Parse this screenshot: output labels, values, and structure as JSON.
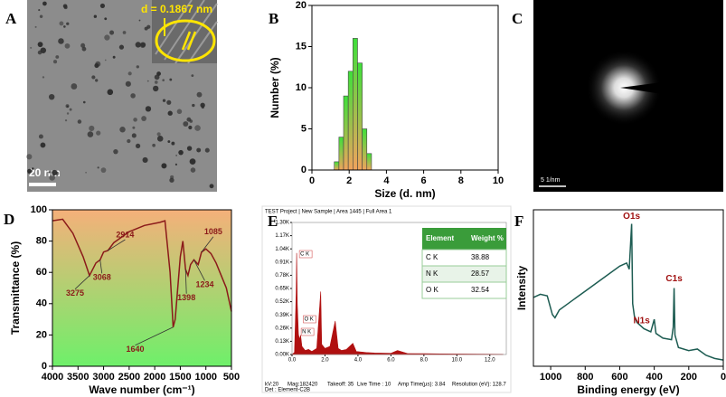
{
  "panel_letters": [
    "A",
    "B",
    "C",
    "D",
    "E",
    "F"
  ],
  "tem_image": {
    "lattice_spacing": "d = 0.1867 nm",
    "scale_bar": "20 nm"
  },
  "saed_image": {
    "scale_bar": "5 1/nm"
  },
  "chart_data": [
    {
      "type": "histogram",
      "x_label": "Size (d. nm)",
      "y_label": "Number (%)",
      "bins": [
        1.2,
        1.45,
        1.7,
        1.95,
        2.2,
        2.45,
        2.7,
        2.95,
        3.2
      ],
      "values": [
        1,
        4,
        9,
        12,
        16,
        13,
        5,
        2
      ],
      "color": "#3ee03a",
      "color_bottom": "#f0a35c",
      "xlim": [
        0,
        10
      ],
      "xticks": [
        0,
        2,
        4,
        6,
        8,
        10
      ],
      "ylim": [
        0,
        20
      ],
      "yticks": [
        0,
        5,
        10,
        15,
        20
      ]
    },
    {
      "type": "line",
      "x_label": "Wave number (cm⁻¹)",
      "y_label": "Transmittance (%)",
      "x": [
        4000,
        3800,
        3600,
        3400,
        3275,
        3150,
        3068,
        3000,
        2914,
        2800,
        2500,
        2200,
        1900,
        1800,
        1700,
        1640,
        1600,
        1500,
        1450,
        1398,
        1350,
        1300,
        1234,
        1150,
        1085,
        1000,
        900,
        800,
        700,
        600,
        500
      ],
      "values": [
        93,
        94,
        85,
        70,
        58,
        66,
        68,
        73,
        74,
        79,
        86,
        90,
        92,
        93,
        60,
        25,
        30,
        70,
        80,
        62,
        58,
        65,
        68,
        65,
        73,
        75,
        72,
        66,
        58,
        50,
        35
      ],
      "color": "#8b1a1a",
      "background": "#f5b07a",
      "background_bottom": "#6ef06a",
      "xlim": [
        4000,
        500
      ],
      "xticks": [
        4000,
        3500,
        3000,
        2500,
        2000,
        1500,
        1000,
        500
      ],
      "ylim": [
        0,
        100
      ],
      "yticks": [
        0,
        20,
        40,
        60,
        80,
        100
      ],
      "annotations": [
        {
          "text": "3275",
          "x": 3275,
          "y": 58
        },
        {
          "text": "3068",
          "x": 3068,
          "y": 68
        },
        {
          "text": "2914",
          "x": 2914,
          "y": 74
        },
        {
          "text": "1640",
          "x": 1640,
          "y": 25
        },
        {
          "text": "1398",
          "x": 1398,
          "y": 62
        },
        {
          "text": "1234",
          "x": 1234,
          "y": 68
        },
        {
          "text": "1085",
          "x": 1085,
          "y": 73
        }
      ]
    },
    {
      "type": "area",
      "header": "TEST Project | New Sample | Area 1445 | Full Area 1",
      "footer": [
        "kV:20",
        "Mag:182420",
        "Takeoff: 35",
        "Live Time : 10",
        "Amp Time(µs): 3.84",
        "Resolution (eV): 128.7",
        "Det : Element-C2B"
      ],
      "x": [
        0,
        0.15,
        0.25,
        0.28,
        0.32,
        0.39,
        0.45,
        0.52,
        0.6,
        0.8,
        1.0,
        1.2,
        1.5,
        1.74,
        1.8,
        2.0,
        2.3,
        2.62,
        2.8,
        3.0,
        3.3,
        3.69,
        3.9,
        4.5,
        5.0,
        6.0,
        6.4,
        7.0,
        8.0,
        9.0,
        10.0,
        11.0,
        12.0,
        12.8
      ],
      "values": [
        0,
        20,
        600,
        1000,
        500,
        200,
        150,
        190,
        80,
        40,
        50,
        30,
        60,
        620,
        100,
        60,
        80,
        330,
        60,
        40,
        50,
        110,
        30,
        20,
        15,
        12,
        40,
        10,
        8,
        6,
        5,
        4,
        3,
        2
      ],
      "color": "#b01010",
      "xlim": [
        0,
        13
      ],
      "xticks": [
        {
          "value": 0,
          "label": "0.0"
        },
        {
          "value": 2,
          "label": "2.0"
        },
        {
          "value": 4,
          "label": "4.0"
        },
        {
          "value": 6,
          "label": "6.0"
        },
        {
          "value": 8,
          "label": "8.0"
        },
        {
          "value": 10,
          "label": "10.0"
        },
        {
          "value": 12,
          "label": "12.0"
        }
      ],
      "ylim": [
        0,
        1300
      ],
      "yticks": [
        {
          "value": 0,
          "label": "0.00K"
        },
        {
          "value": 130,
          "label": "0.13K"
        },
        {
          "value": 260,
          "label": "0.26K"
        },
        {
          "value": 390,
          "label": "0.39K"
        },
        {
          "value": 520,
          "label": "0.52K"
        },
        {
          "value": 650,
          "label": "0.65K"
        },
        {
          "value": 780,
          "label": "0.78K"
        },
        {
          "value": 910,
          "label": "0.91K"
        },
        {
          "value": 1040,
          "label": "1.04K"
        },
        {
          "value": 1170,
          "label": "1.17K"
        },
        {
          "value": 1300,
          "label": "1.30K"
        }
      ],
      "annotations": [
        {
          "text": "C K",
          "x": 0.28
        },
        {
          "text": "O K",
          "x": 0.52
        },
        {
          "text": "N K",
          "x": 0.39
        }
      ],
      "table": {
        "columns": [
          "Element",
          "Weight %"
        ],
        "rows": [
          [
            "C K",
            38.88
          ],
          [
            "N K",
            28.57
          ],
          [
            "O K",
            32.54
          ]
        ]
      }
    },
    {
      "type": "line",
      "x_label": "Binding energy (eV)",
      "y_label": "Intensity",
      "x": [
        1100,
        1060,
        1020,
        990,
        975,
        950,
        900,
        800,
        700,
        600,
        560,
        545,
        531,
        525,
        515,
        500,
        460,
        420,
        400,
        390,
        350,
        300,
        290,
        285,
        280,
        260,
        200,
        150,
        100,
        50,
        0
      ],
      "values": [
        44,
        46,
        45,
        33,
        31,
        36,
        40,
        48,
        56,
        64,
        66,
        62,
        91,
        40,
        32,
        28,
        24,
        22,
        30,
        21,
        18,
        17,
        25,
        50,
        20,
        12,
        10,
        11,
        7,
        5,
        4
      ],
      "color": "#1d5c52",
      "xlim": [
        1100,
        0
      ],
      "xticks": [
        1000,
        800,
        600,
        400,
        200,
        0
      ],
      "ylim": [
        0,
        100
      ],
      "annotations": [
        {
          "text": "O1s",
          "x": 531,
          "y": 91
        },
        {
          "text": "N1s",
          "x": 400,
          "y": 30
        },
        {
          "text": "C1s",
          "x": 285,
          "y": 50
        }
      ]
    }
  ]
}
